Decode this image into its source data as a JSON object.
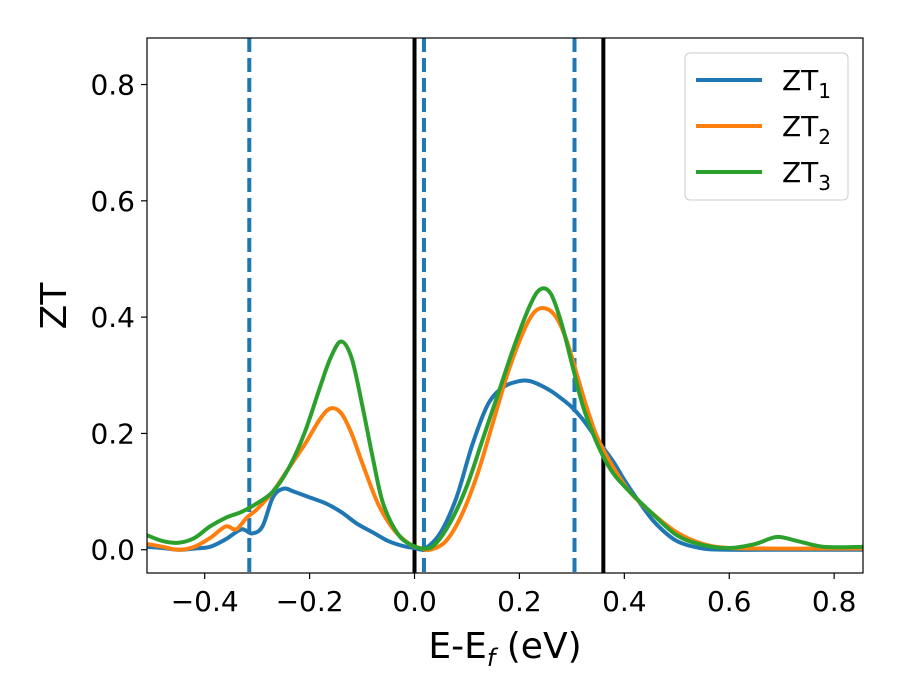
{
  "chart_data": {
    "type": "line",
    "xlabel": "E-E",
    "xlabel_sub": "f",
    "xlabel_unit": " (eV)",
    "ylabel": "ZT",
    "xlim": [
      -0.51,
      0.855
    ],
    "ylim": [
      -0.04,
      0.88
    ],
    "xticks": [
      -0.4,
      -0.2,
      0.0,
      0.2,
      0.4,
      0.6,
      0.8
    ],
    "xtick_labels": [
      "−0.4",
      "−0.2",
      "0.0",
      "0.2",
      "0.4",
      "0.6",
      "0.8"
    ],
    "yticks": [
      0.0,
      0.2,
      0.4,
      0.6,
      0.8
    ],
    "ytick_labels": [
      "0.0",
      "0.2",
      "0.4",
      "0.6",
      "0.8"
    ],
    "grid": false,
    "legend_position": "top-right",
    "vlines": [
      {
        "x": -0.315,
        "style": "dashed",
        "color": "#1f77b4"
      },
      {
        "x": 0.0,
        "style": "solid",
        "color": "#000000"
      },
      {
        "x": 0.018,
        "style": "dashed",
        "color": "#1f77b4"
      },
      {
        "x": 0.305,
        "style": "dashed",
        "color": "#1f77b4"
      },
      {
        "x": 0.36,
        "style": "solid",
        "color": "#000000"
      }
    ],
    "series": [
      {
        "name": "ZT",
        "name_sub": "1",
        "color": "#1f77b4",
        "x": [
          -0.51,
          -0.48,
          -0.45,
          -0.42,
          -0.39,
          -0.36,
          -0.33,
          -0.31,
          -0.29,
          -0.27,
          -0.25,
          -0.23,
          -0.2,
          -0.17,
          -0.14,
          -0.11,
          -0.08,
          -0.05,
          -0.02,
          0.0,
          0.02,
          0.05,
          0.08,
          0.11,
          0.14,
          0.17,
          0.2,
          0.22,
          0.24,
          0.26,
          0.28,
          0.3,
          0.32,
          0.34,
          0.36,
          0.38,
          0.4,
          0.43,
          0.46,
          0.5,
          0.55,
          0.6,
          0.7,
          0.8,
          0.855
        ],
        "values": [
          0.005,
          0.003,
          0.0,
          0.002,
          0.005,
          0.018,
          0.035,
          0.028,
          0.04,
          0.09,
          0.105,
          0.1,
          0.09,
          0.08,
          0.065,
          0.045,
          0.03,
          0.015,
          0.006,
          0.003,
          0.002,
          0.03,
          0.09,
          0.18,
          0.25,
          0.28,
          0.29,
          0.29,
          0.283,
          0.273,
          0.26,
          0.245,
          0.225,
          0.2,
          0.175,
          0.15,
          0.12,
          0.08,
          0.045,
          0.015,
          0.002,
          0.0,
          0.0,
          0.0,
          0.0
        ]
      },
      {
        "name": "ZT",
        "name_sub": "2",
        "color": "#ff7f0e",
        "x": [
          -0.51,
          -0.48,
          -0.45,
          -0.42,
          -0.39,
          -0.36,
          -0.34,
          -0.32,
          -0.3,
          -0.27,
          -0.24,
          -0.21,
          -0.18,
          -0.16,
          -0.14,
          -0.12,
          -0.1,
          -0.07,
          -0.04,
          -0.01,
          0.01,
          0.03,
          0.06,
          0.09,
          0.12,
          0.15,
          0.18,
          0.21,
          0.23,
          0.25,
          0.27,
          0.29,
          0.31,
          0.33,
          0.35,
          0.38,
          0.41,
          0.45,
          0.5,
          0.55,
          0.6,
          0.7,
          0.8,
          0.855
        ],
        "values": [
          0.01,
          0.005,
          0.0,
          0.005,
          0.02,
          0.04,
          0.035,
          0.055,
          0.07,
          0.1,
          0.14,
          0.18,
          0.225,
          0.243,
          0.235,
          0.2,
          0.15,
          0.08,
          0.035,
          0.01,
          0.003,
          0.0,
          0.015,
          0.06,
          0.13,
          0.22,
          0.31,
          0.38,
          0.41,
          0.415,
          0.4,
          0.36,
          0.3,
          0.24,
          0.19,
          0.14,
          0.1,
          0.065,
          0.03,
          0.01,
          0.003,
          0.002,
          0.002,
          0.002
        ]
      },
      {
        "name": "ZT",
        "name_sub": "3",
        "color": "#2ca02c",
        "x": [
          -0.51,
          -0.48,
          -0.45,
          -0.42,
          -0.39,
          -0.36,
          -0.33,
          -0.3,
          -0.27,
          -0.24,
          -0.21,
          -0.18,
          -0.16,
          -0.14,
          -0.12,
          -0.1,
          -0.08,
          -0.06,
          -0.03,
          0.0,
          0.02,
          0.04,
          0.07,
          0.1,
          0.13,
          0.16,
          0.19,
          0.22,
          0.24,
          0.26,
          0.28,
          0.3,
          0.32,
          0.34,
          0.36,
          0.38,
          0.41,
          0.45,
          0.5,
          0.55,
          0.6,
          0.65,
          0.69,
          0.73,
          0.78,
          0.855
        ],
        "values": [
          0.025,
          0.015,
          0.012,
          0.02,
          0.04,
          0.055,
          0.065,
          0.08,
          0.1,
          0.14,
          0.2,
          0.28,
          0.33,
          0.358,
          0.33,
          0.25,
          0.16,
          0.08,
          0.025,
          0.006,
          0.002,
          0.01,
          0.05,
          0.11,
          0.19,
          0.27,
          0.35,
          0.42,
          0.448,
          0.44,
          0.39,
          0.32,
          0.25,
          0.2,
          0.16,
          0.13,
          0.1,
          0.065,
          0.025,
          0.008,
          0.003,
          0.01,
          0.022,
          0.015,
          0.005,
          0.005
        ]
      }
    ]
  }
}
